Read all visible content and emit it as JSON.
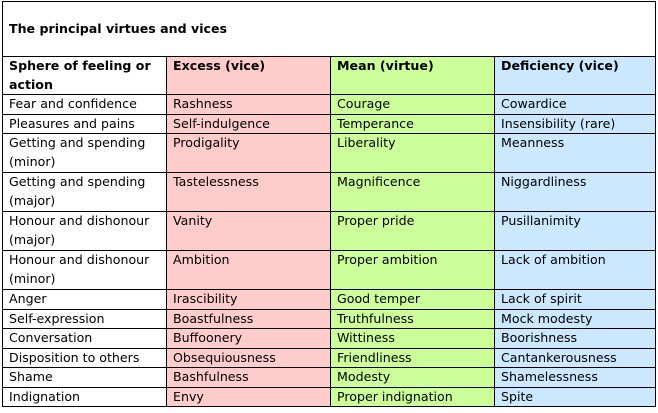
{
  "title": "The principal virtues and vices",
  "headers": [
    "Sphere of feeling or action",
    "Excess (vice)",
    "Mean (virtue)",
    "Deficiency (vice)"
  ],
  "colors": {
    "excess": "#ffcccc",
    "mean": "#ccff99",
    "deficiency": "#cce8ff",
    "border": "#000000"
  },
  "rows": [
    [
      "Fear and confidence",
      "Rashness",
      "Courage",
      "Cowardice"
    ],
    [
      "Pleasures and pains",
      "Self-indulgence",
      "Temperance",
      "Insensibility (rare)"
    ],
    [
      "Getting and spending (minor)",
      "Prodigality",
      "Liberality",
      "Meanness"
    ],
    [
      "Getting and spending (major)",
      "Tastelessness",
      "Magnificence",
      "Niggardliness"
    ],
    [
      "Honour and dishonour (major)",
      "Vanity",
      "Proper pride",
      "Pusillanimity"
    ],
    [
      "Honour and dishonour (minor)",
      "Ambition",
      "Proper ambition",
      "Lack of ambition"
    ],
    [
      "Anger",
      "Irascibility",
      "Good temper",
      "Lack of spirit"
    ],
    [
      "Self-expression",
      "Boastfulness",
      "Truthfulness",
      "Mock modesty"
    ],
    [
      "Conversation",
      "Buffoonery",
      "Wittiness",
      "Boorishness"
    ],
    [
      "Disposition to others",
      "Obsequiousness",
      "Friendliness",
      "Cantankerousness"
    ],
    [
      "Shame",
      "Bashfulness",
      "Modesty",
      "Shamelessness"
    ],
    [
      "Indignation",
      "Envy",
      "Proper indignation",
      "Spite"
    ]
  ]
}
